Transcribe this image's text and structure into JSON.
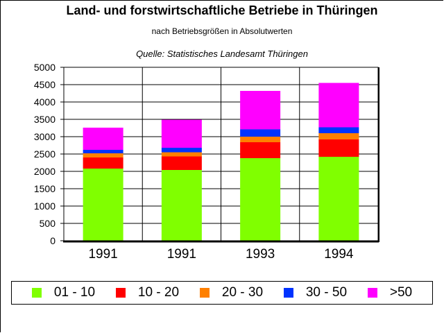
{
  "title": "Land- und forstwirtschaftliche Betriebe in Thüringen",
  "subtitle": "nach Betriebsgrößen in Absolutwerten",
  "source": "Quelle: Statistisches Landesamt Thüringen",
  "chart_data": {
    "type": "bar",
    "stacked": true,
    "categories": [
      "1991",
      "1991",
      "1993",
      "1994"
    ],
    "series": [
      {
        "name": "01 - 10",
        "color": "#80ff00",
        "values": [
          2080,
          2040,
          2380,
          2420
        ]
      },
      {
        "name": "10 - 20",
        "color": "#ff0000",
        "values": [
          320,
          390,
          460,
          500
        ]
      },
      {
        "name": "20 - 30",
        "color": "#ff8000",
        "values": [
          120,
          120,
          160,
          180
        ]
      },
      {
        "name": "30 - 50",
        "color": "#0033ff",
        "values": [
          100,
          130,
          210,
          170
        ]
      },
      {
        "name": ">50",
        "color": "#ff00ff",
        "values": [
          640,
          810,
          1110,
          1280
        ]
      }
    ],
    "ylim": [
      0,
      5000
    ],
    "yticks": [
      0,
      500,
      1000,
      1500,
      2000,
      2500,
      3000,
      3500,
      4000,
      4500,
      5000
    ],
    "grid": true,
    "legend_position": "bottom"
  }
}
